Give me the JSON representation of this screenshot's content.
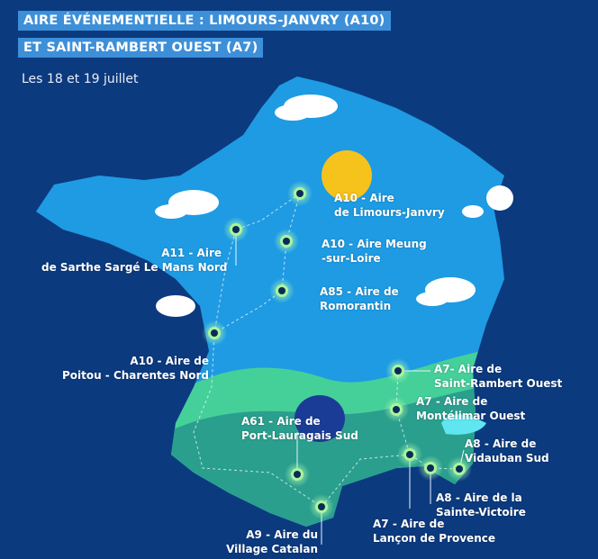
{
  "title": {
    "line1": "AIRE ÉVÉNEMENTIELLE : LIMOURS-JANVRY (A10)",
    "line2": "ET SAINT-RAMBERT OUEST (A7)"
  },
  "date": "Les 18 et 19 juillet",
  "colors": {
    "background": "#0c3a7f",
    "title_bg": "#3d8fd8",
    "map_north": "#1e9be3",
    "map_band": "#45d09a",
    "map_south": "#2b9f8e",
    "sun": "#f6c21c"
  },
  "areas": [
    {
      "l1": "A10 - Aire",
      "l2": "de Limours-Janvry"
    },
    {
      "l1": "A11 - Aire",
      "l2": "de Sarthe Sargé Le Mans Nord"
    },
    {
      "l1": "A10 - Aire Meung",
      "l2": "-sur-Loire"
    },
    {
      "l1": "A85 - Aire de",
      "l2": "Romorantin"
    },
    {
      "l1": "A10 - Aire de",
      "l2": "Poitou - Charentes Nord"
    },
    {
      "l1": "A7- Aire de",
      "l2": "Saint-Rambert Ouest"
    },
    {
      "l1": "A7 - Aire de",
      "l2": "Montélimar Ouest"
    },
    {
      "l1": "A8 - Aire de",
      "l2": "Vidauban Sud"
    },
    {
      "l1": "A8 - Aire de la",
      "l2": "Sainte-Victoire"
    },
    {
      "l1": "A7 - Aire de",
      "l2": "Lançon de Provence"
    },
    {
      "l1": "A61 - Aire de",
      "l2": "Port-Lauragais Sud"
    },
    {
      "l1": "A9 - Aire du",
      "l2": "Village Catalan"
    }
  ]
}
